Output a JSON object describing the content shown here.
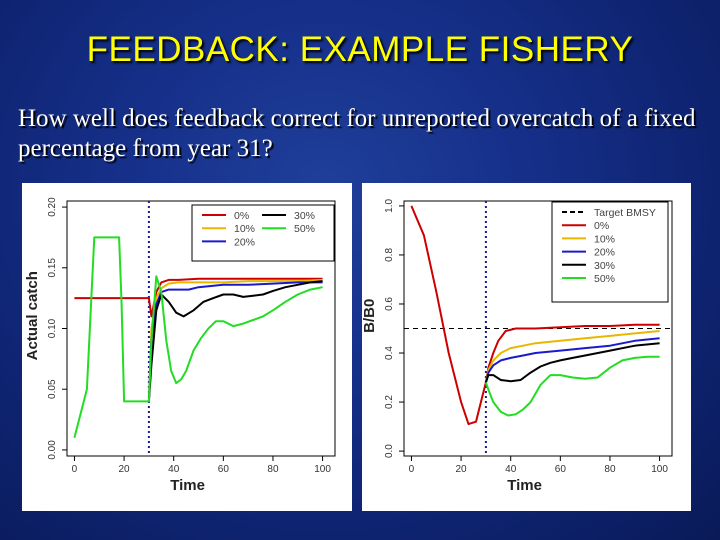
{
  "slide": {
    "title": "FEEDBACK: EXAMPLE FISHERY",
    "question": "How well does feedback correct for unreported overcatch of a fixed percentage from year 31?"
  },
  "chart_data": [
    {
      "type": "line",
      "xlabel": "Time",
      "ylabel": "Actual catch",
      "xlim": [
        -3,
        105
      ],
      "ylim": [
        -0.005,
        0.205
      ],
      "xticks": [
        "0",
        "20",
        "40",
        "60",
        "80",
        "100"
      ],
      "yticks": [
        "0.00",
        "0.05",
        "0.10",
        "0.15",
        "0.20"
      ],
      "grid": false,
      "legend_position": "top-right",
      "vline": 30,
      "series": [
        {
          "name": "0%",
          "color": "#cc0000",
          "x": [
            0,
            30,
            31,
            33,
            35,
            38,
            42,
            50,
            60,
            70,
            80,
            90,
            100
          ],
          "y": [
            0.125,
            0.125,
            0.11,
            0.13,
            0.138,
            0.14,
            0.14,
            0.141,
            0.141,
            0.141,
            0.141,
            0.141,
            0.141
          ]
        },
        {
          "name": "10%",
          "color": "#e8b800",
          "x": [
            30,
            31,
            33,
            35,
            38,
            42,
            50,
            60,
            70,
            80,
            90,
            100
          ],
          "y": [
            0.04,
            0.1,
            0.125,
            0.133,
            0.137,
            0.138,
            0.138,
            0.138,
            0.139,
            0.139,
            0.139,
            0.14
          ]
        },
        {
          "name": "20%",
          "color": "#1a1acc",
          "x": [
            30,
            31,
            33,
            35,
            38,
            42,
            46,
            50,
            55,
            60,
            70,
            80,
            90,
            100
          ],
          "y": [
            0.04,
            0.09,
            0.12,
            0.13,
            0.132,
            0.132,
            0.132,
            0.134,
            0.135,
            0.136,
            0.136,
            0.137,
            0.138,
            0.138
          ]
        },
        {
          "name": "30%",
          "color": "#000000",
          "x": [
            30,
            31,
            33,
            35,
            38,
            41,
            44,
            48,
            52,
            56,
            60,
            64,
            68,
            72,
            76,
            80,
            85,
            90,
            95,
            100
          ],
          "y": [
            0.04,
            0.07,
            0.115,
            0.128,
            0.122,
            0.113,
            0.11,
            0.115,
            0.122,
            0.125,
            0.128,
            0.128,
            0.126,
            0.127,
            0.128,
            0.131,
            0.134,
            0.136,
            0.138,
            0.139
          ]
        },
        {
          "name": "50%",
          "color": "#22dd22",
          "x": [
            0,
            5,
            8,
            12,
            18,
            19,
            20,
            21,
            24,
            30,
            31,
            33,
            35,
            37,
            39,
            41,
            43,
            45,
            48,
            51,
            54,
            57,
            60,
            64,
            68,
            72,
            76,
            80,
            85,
            90,
            95,
            100
          ],
          "y": [
            0.01,
            0.05,
            0.175,
            0.175,
            0.175,
            0.12,
            0.04,
            0.04,
            0.04,
            0.04,
            0.09,
            0.143,
            0.13,
            0.09,
            0.065,
            0.055,
            0.058,
            0.065,
            0.082,
            0.092,
            0.1,
            0.106,
            0.106,
            0.102,
            0.104,
            0.107,
            0.11,
            0.115,
            0.122,
            0.128,
            0.132,
            0.134
          ]
        }
      ]
    },
    {
      "type": "line",
      "xlabel": "Time",
      "ylabel": "B/B0",
      "xlim": [
        -3,
        105
      ],
      "ylim": [
        -0.02,
        1.02
      ],
      "xticks": [
        "0",
        "20",
        "40",
        "60",
        "80",
        "100"
      ],
      "yticks": [
        "0.0",
        "0.2",
        "0.4",
        "0.6",
        "0.8",
        "1.0"
      ],
      "grid": false,
      "legend_position": "top-right",
      "vline": 30,
      "hline": {
        "name": "Target BMSY",
        "y": 0.5
      },
      "series": [
        {
          "name": "0%",
          "color": "#cc0000",
          "x": [
            0,
            5,
            10,
            15,
            20,
            23,
            26,
            28,
            30,
            31,
            33,
            35,
            38,
            42,
            50,
            60,
            70,
            80,
            90,
            100
          ],
          "y": [
            1.0,
            0.88,
            0.65,
            0.4,
            0.2,
            0.11,
            0.12,
            0.2,
            0.28,
            0.34,
            0.4,
            0.45,
            0.49,
            0.5,
            0.5,
            0.505,
            0.51,
            0.51,
            0.515,
            0.515
          ]
        },
        {
          "name": "10%",
          "color": "#e8b800",
          "x": [
            30,
            31,
            33,
            36,
            40,
            45,
            50,
            60,
            70,
            80,
            90,
            100
          ],
          "y": [
            0.28,
            0.33,
            0.37,
            0.4,
            0.42,
            0.43,
            0.44,
            0.45,
            0.46,
            0.47,
            0.48,
            0.49
          ]
        },
        {
          "name": "20%",
          "color": "#1a1acc",
          "x": [
            30,
            31,
            33,
            36,
            40,
            45,
            50,
            60,
            70,
            80,
            90,
            100
          ],
          "y": [
            0.28,
            0.32,
            0.35,
            0.37,
            0.38,
            0.39,
            0.4,
            0.41,
            0.42,
            0.43,
            0.45,
            0.46
          ]
        },
        {
          "name": "30%",
          "color": "#000000",
          "x": [
            30,
            31,
            33,
            36,
            40,
            44,
            48,
            52,
            56,
            60,
            65,
            70,
            80,
            90,
            100
          ],
          "y": [
            0.28,
            0.31,
            0.31,
            0.29,
            0.285,
            0.29,
            0.32,
            0.345,
            0.36,
            0.37,
            0.38,
            0.39,
            0.41,
            0.43,
            0.44
          ]
        },
        {
          "name": "50%",
          "color": "#22dd22",
          "x": [
            30,
            31,
            33,
            36,
            39,
            42,
            45,
            48,
            52,
            56,
            60,
            65,
            70,
            75,
            80,
            85,
            90,
            95,
            100
          ],
          "y": [
            0.28,
            0.25,
            0.2,
            0.16,
            0.145,
            0.15,
            0.17,
            0.2,
            0.27,
            0.31,
            0.31,
            0.3,
            0.295,
            0.3,
            0.34,
            0.37,
            0.38,
            0.385,
            0.385
          ]
        }
      ]
    }
  ]
}
